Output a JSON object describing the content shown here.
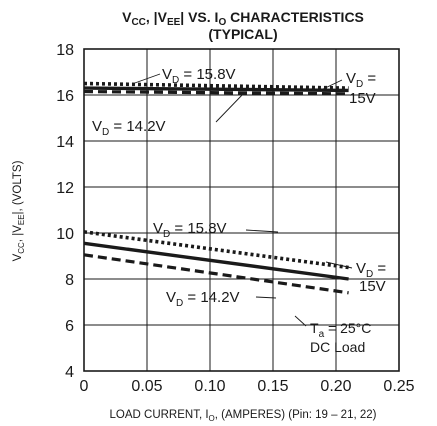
{
  "chart_data": {
    "type": "line",
    "title": {
      "line1": {
        "a": "V",
        "a_sub": "CC",
        "b": ", |V",
        "b_sub": "EE",
        "c": "| VS. I",
        "c_sub": "O",
        "d": " CHARACTERISTICS"
      },
      "line2": "(TYPICAL)"
    },
    "xlabel": {
      "main": "LOAD CURRENT, I",
      "sub": "O",
      "rest": ", (AMPERES) (Pin: 19 – 21, 22)"
    },
    "ylabel": {
      "a": "V",
      "a_sub": "CC",
      "b": ", |V",
      "b_sub": "EE",
      "c": "|, (VOLTS)"
    },
    "xlim": [
      0,
      0.25
    ],
    "ylim": [
      4,
      18
    ],
    "xticks": [
      "0",
      "0.05",
      "0.10",
      "0.15",
      "0.20",
      "0.25"
    ],
    "yticks": [
      "4",
      "6",
      "8",
      "10",
      "12",
      "14",
      "16",
      "18"
    ],
    "grid": true,
    "series": [
      {
        "group": "VCC",
        "vd": "15.8V",
        "style": "dotted",
        "x": [
          0,
          0.21
        ],
        "y": [
          16.5,
          16.3
        ]
      },
      {
        "group": "VCC",
        "vd": "15V",
        "style": "solid",
        "x": [
          0,
          0.21
        ],
        "y": [
          16.3,
          16.2
        ]
      },
      {
        "group": "VCC",
        "vd": "14.2V",
        "style": "dashed",
        "x": [
          0,
          0.21
        ],
        "y": [
          16.15,
          16.05
        ]
      },
      {
        "group": "VEE",
        "vd": "15.8V",
        "style": "dotted",
        "x": [
          0,
          0.21
        ],
        "y": [
          10.05,
          8.5
        ]
      },
      {
        "group": "VEE",
        "vd": "15V",
        "style": "solid",
        "x": [
          0,
          0.21
        ],
        "y": [
          9.55,
          8.0
        ]
      },
      {
        "group": "VEE",
        "vd": "14.2V",
        "style": "dashed",
        "x": [
          0,
          0.21
        ],
        "y": [
          9.05,
          7.4
        ]
      }
    ],
    "annotations": [
      {
        "name": "vd-15-8-upper",
        "prefix": "V",
        "sub": "D",
        "text": " = 15.8V"
      },
      {
        "name": "vd-15-upper",
        "prefix": "V",
        "sub": "D",
        "text": " =",
        "line2": "15V"
      },
      {
        "name": "vd-14-2-upper",
        "prefix": "V",
        "sub": "D",
        "text": " = 14.2V"
      },
      {
        "name": "vd-15-8-lower",
        "prefix": "V",
        "sub": "D",
        "text": " = 15.8V"
      },
      {
        "name": "vd-15-lower",
        "prefix": "V",
        "sub": "D",
        "text": " =",
        "line2": "15V"
      },
      {
        "name": "vd-14-2-lower",
        "prefix": "V",
        "sub": "D",
        "text": " = 14.2V"
      }
    ],
    "conditions": {
      "ta": "T",
      "ta_sub": "a",
      "ta_text": " = 25°C",
      "load": "DC Load"
    }
  }
}
